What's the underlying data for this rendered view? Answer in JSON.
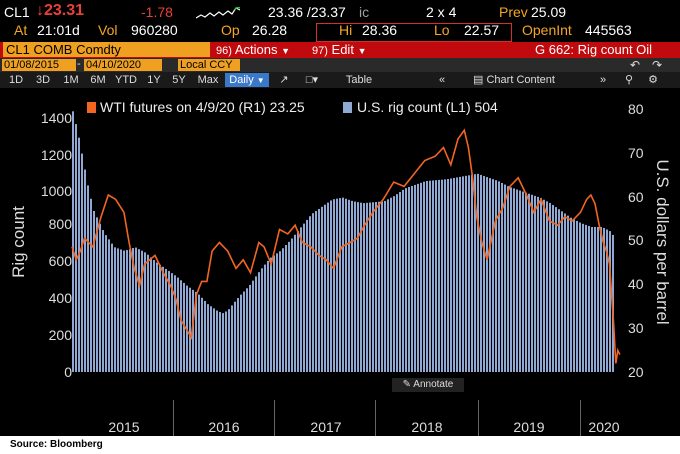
{
  "header": {
    "ticker": "CL1",
    "last_price": "↓23.31",
    "change": "-1.78",
    "bid_ask": "23.36 /23.37",
    "ic": "ic",
    "size": "2 x 4",
    "prev_label": "Prev",
    "prev_value": "25.09",
    "time_label": "At",
    "time_value": "21:01d",
    "vol_label": "Vol",
    "vol_value": "960280",
    "open_label": "Op",
    "open_value": "26.28",
    "hi_label": "Hi",
    "hi_value": "28.36",
    "lo_label": "Lo",
    "lo_value": "22.57",
    "oi_label": "OpenInt",
    "oi_value": "445563"
  },
  "security_bar": {
    "security": "CL1 COMB Comdty",
    "actions_num": "96)",
    "actions": "Actions",
    "edit_num": "97)",
    "edit": "Edit",
    "chart_name": "G 662: Rig count Oil"
  },
  "date_bar": {
    "start": "01/08/2015",
    "end": "04/10/2020",
    "currency": "Local CCY"
  },
  "toolbar": {
    "ranges": [
      "1D",
      "3D",
      "1M",
      "6M",
      "YTD",
      "1Y",
      "5Y",
      "Max"
    ],
    "frequency": "Daily",
    "table": "Table",
    "chart_content": "Chart Content"
  },
  "chart_data": {
    "type": "line+bar",
    "title": "",
    "legend": [
      {
        "name": "WTI futures on 4/9/20 (R1) 23.25",
        "color": "#f26522"
      },
      {
        "name": "U.S. rig count  (L1) 504",
        "color": "#8fa9d4"
      }
    ],
    "ylabel_left": "Rig count",
    "ylabel_right": "U.S. dollars per barrel",
    "ylim_left": [
      0,
      1500
    ],
    "ylim_right": [
      20,
      85
    ],
    "yticks_left": [
      0,
      200,
      400,
      600,
      800,
      1000,
      1200,
      1400
    ],
    "yticks_right": [
      20,
      30,
      40,
      50,
      60,
      70,
      80
    ],
    "xlim": [
      2015.0,
      2020.3
    ],
    "x_labels": [
      "2015",
      "2016",
      "2017",
      "2018",
      "2019",
      "2020"
    ],
    "series": [
      {
        "name": "U.S. rig count",
        "axis": "left",
        "kind": "bar",
        "x": [
          2015.0,
          2015.05,
          2015.1,
          2015.15,
          2015.2,
          2015.3,
          2015.4,
          2015.5,
          2015.6,
          2015.7,
          2015.8,
          2015.9,
          2016.0,
          2016.1,
          2016.2,
          2016.3,
          2016.4,
          2016.45,
          2016.5,
          2016.6,
          2016.7,
          2016.8,
          2016.9,
          2017.0,
          2017.1,
          2017.2,
          2017.3,
          2017.4,
          2017.5,
          2017.6,
          2017.7,
          2017.8,
          2017.9,
          2018.0,
          2018.1,
          2018.2,
          2018.3,
          2018.4,
          2018.5,
          2018.6,
          2018.7,
          2018.8,
          2018.9,
          2019.0,
          2019.1,
          2019.2,
          2019.3,
          2019.4,
          2019.5,
          2019.6,
          2019.7,
          2019.8,
          2019.9,
          2020.0,
          2020.1,
          2020.2,
          2020.27
        ],
        "values": [
          1420,
          1300,
          1150,
          1000,
          880,
          760,
          680,
          660,
          680,
          650,
          600,
          560,
          520,
          470,
          430,
          370,
          330,
          320,
          340,
          410,
          470,
          550,
          620,
          660,
          720,
          790,
          860,
          900,
          940,
          950,
          930,
          920,
          925,
          930,
          960,
          1000,
          1020,
          1040,
          1045,
          1050,
          1060,
          1070,
          1080,
          1060,
          1040,
          1010,
          990,
          970,
          950,
          920,
          880,
          840,
          810,
          790,
          790,
          760,
          504
        ]
      },
      {
        "name": "WTI futures",
        "axis": "right",
        "kind": "line",
        "x": [
          2015.0,
          2015.04,
          2015.08,
          2015.12,
          2015.2,
          2015.28,
          2015.35,
          2015.42,
          2015.5,
          2015.55,
          2015.6,
          2015.65,
          2015.7,
          2015.75,
          2015.8,
          2015.88,
          2015.95,
          2016.0,
          2016.05,
          2016.1,
          2016.15,
          2016.2,
          2016.25,
          2016.3,
          2016.35,
          2016.42,
          2016.5,
          2016.58,
          2016.65,
          2016.72,
          2016.8,
          2016.85,
          2016.92,
          2017.0,
          2017.08,
          2017.15,
          2017.22,
          2017.3,
          2017.38,
          2017.45,
          2017.52,
          2017.6,
          2017.68,
          2017.75,
          2017.82,
          2017.9,
          2018.0,
          2018.1,
          2018.2,
          2018.3,
          2018.4,
          2018.5,
          2018.58,
          2018.65,
          2018.72,
          2018.78,
          2018.82,
          2018.86,
          2018.9,
          2018.95,
          2019.0,
          2019.08,
          2019.15,
          2019.22,
          2019.3,
          2019.38,
          2019.45,
          2019.52,
          2019.6,
          2019.68,
          2019.75,
          2019.82,
          2019.9,
          2019.96,
          2020.0,
          2020.04,
          2020.08,
          2020.12,
          2020.15,
          2020.18,
          2020.2,
          2020.22,
          2020.24,
          2020.26,
          2020.28
        ],
        "values": [
          49,
          46,
          48,
          51,
          49,
          56,
          61,
          60,
          57,
          50,
          44,
          40,
          45,
          46,
          47,
          43,
          40,
          37,
          32,
          30,
          28,
          38,
          41,
          41,
          48,
          50,
          48,
          44,
          46,
          43,
          50,
          49,
          45,
          53,
          52,
          54,
          50,
          49,
          47,
          46,
          44,
          49,
          50,
          51,
          54,
          57,
          60,
          64,
          63,
          66,
          69,
          70,
          72,
          68,
          74,
          76,
          72,
          65,
          56,
          50,
          46,
          55,
          58,
          63,
          65,
          61,
          57,
          60,
          55,
          54,
          56,
          55,
          57,
          60,
          61,
          59,
          54,
          50,
          48,
          45,
          38,
          31,
          22,
          25,
          24
        ]
      }
    ],
    "source": "Source:  Bloomberg",
    "annotate": "Annotate"
  }
}
